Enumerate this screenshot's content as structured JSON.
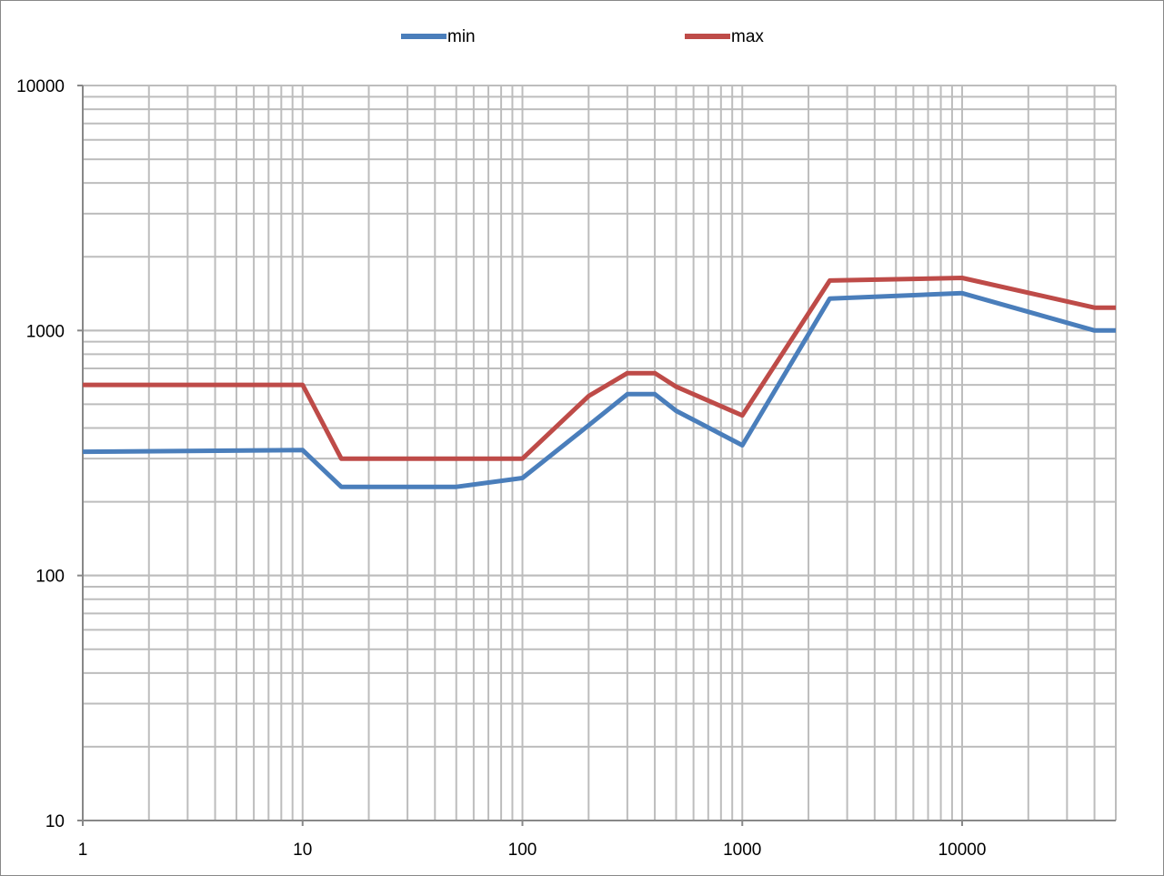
{
  "chart_data": {
    "type": "line",
    "title": "",
    "xlabel": "",
    "ylabel": "",
    "x_scale": "log",
    "y_scale": "log",
    "xlim": [
      1,
      50000
    ],
    "ylim": [
      10,
      10000
    ],
    "x_ticks": [
      "1",
      "10",
      "100",
      "1000",
      "10000"
    ],
    "y_ticks": [
      "10",
      "100",
      "1000",
      "10000"
    ],
    "grid": true,
    "legend_placement": "top",
    "series": [
      {
        "name": "min",
        "color": "#4a7ebb",
        "x": [
          1,
          10,
          15,
          50,
          100,
          200,
          300,
          400,
          500,
          1000,
          2500,
          10000,
          40000,
          50000
        ],
        "y": [
          320,
          325,
          230,
          230,
          250,
          410,
          550,
          550,
          470,
          340,
          1350,
          1420,
          1000,
          1000
        ]
      },
      {
        "name": "max",
        "color": "#be4b48",
        "x": [
          1,
          10,
          15,
          100,
          200,
          300,
          400,
          500,
          1000,
          2500,
          10000,
          40000,
          50000
        ],
        "y": [
          600,
          600,
          300,
          300,
          540,
          670,
          670,
          590,
          450,
          1600,
          1640,
          1240,
          1240
        ]
      }
    ]
  }
}
